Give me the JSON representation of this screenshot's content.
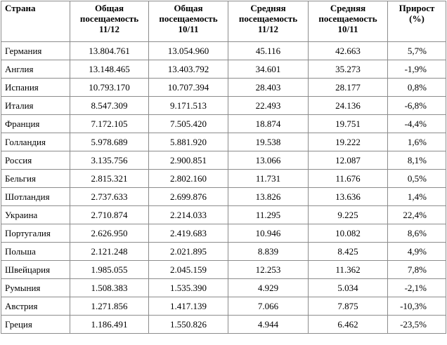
{
  "table": {
    "headers": [
      "Страна",
      "Общая посещаемость 11/12",
      "Общая посещаемость 10/11",
      "Средняя посещаемость 11/12",
      "Средняя посещаемость 10/11",
      "Прирост (%)"
    ],
    "rows": [
      [
        "Германия",
        "13.804.761",
        "13.054.960",
        "45.116",
        "42.663",
        "5,7%"
      ],
      [
        "Англия",
        "13.148.465",
        "13.403.792",
        "34.601",
        "35.273",
        "-1,9%"
      ],
      [
        "Испания",
        "10.793.170",
        "10.707.394",
        "28.403",
        "28.177",
        "0,8%"
      ],
      [
        "Италия",
        "8.547.309",
        "9.171.513",
        "22.493",
        "24.136",
        "-6,8%"
      ],
      [
        "Франция",
        "7.172.105",
        "7.505.420",
        "18.874",
        "19.751",
        "-4,4%"
      ],
      [
        "Голландия",
        "5.978.689",
        "5.881.920",
        "19.538",
        "19.222",
        "1,6%"
      ],
      [
        "Россия",
        "3.135.756",
        "2.900.851",
        "13.066",
        "12.087",
        "8,1%"
      ],
      [
        "Бельгия",
        "2.815.321",
        "2.802.160",
        "11.731",
        "11.676",
        "0,5%"
      ],
      [
        "Шотландия",
        "2.737.633",
        "2.699.876",
        "13.826",
        "13.636",
        "1,4%"
      ],
      [
        "Украина",
        "2.710.874",
        "2.214.033",
        "11.295",
        "9.225",
        "22,4%"
      ],
      [
        "Португалия",
        "2.626.950",
        "2.419.683",
        "10.946",
        "10.082",
        "8,6%"
      ],
      [
        "Польша",
        "2.121.248",
        "2.021.895",
        "8.839",
        "8.425",
        "4,9%"
      ],
      [
        "Швейцария",
        "1.985.055",
        "2.045.159",
        "12.253",
        "11.362",
        "7,8%"
      ],
      [
        "Румыния",
        "1.508.383",
        "1.535.390",
        "4.929",
        "5.034",
        "-2,1%"
      ],
      [
        "Австрия",
        "1.271.856",
        "1.417.139",
        "7.066",
        "7.875",
        "-10,3%"
      ],
      [
        "Греция",
        "1.186.491",
        "1.550.826",
        "4.944",
        "6.462",
        "-23,5%"
      ]
    ]
  }
}
